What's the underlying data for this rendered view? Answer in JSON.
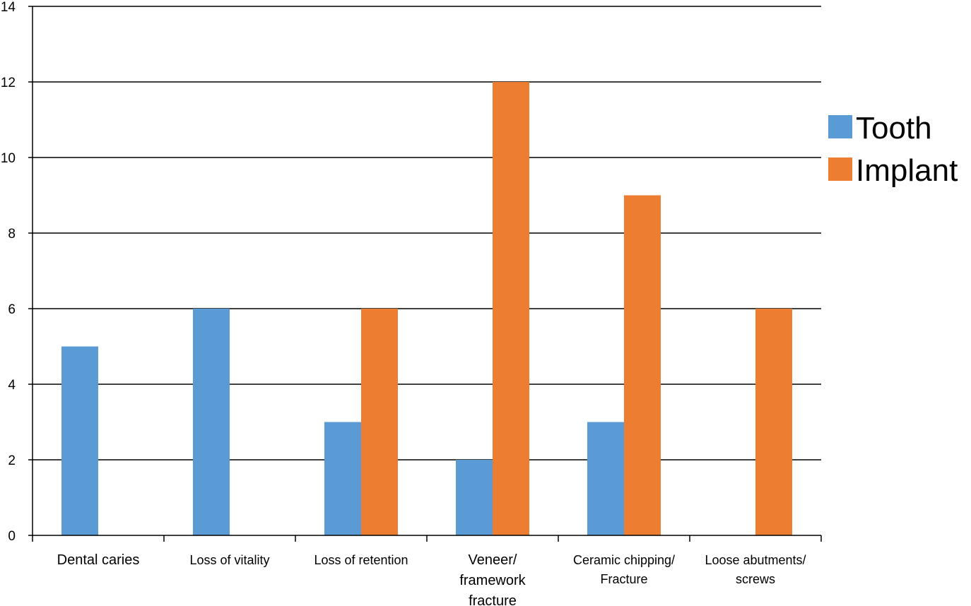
{
  "chart_data": {
    "type": "bar",
    "title": "",
    "xlabel": "",
    "ylabel": "",
    "ylim": [
      0,
      14
    ],
    "y_ticks": [
      0,
      2,
      4,
      6,
      8,
      10,
      12,
      14
    ],
    "grid": true,
    "legend_position": "right",
    "categories": [
      [
        "Dental caries"
      ],
      [
        "Loss of vitality"
      ],
      [
        "Loss of retention"
      ],
      [
        "Veneer/",
        "framework",
        "fracture"
      ],
      [
        "Ceramic chipping/",
        "Fracture"
      ],
      [
        "Loose abutments/",
        "screws"
      ]
    ],
    "series": [
      {
        "name": "Tooth",
        "color": "#5b9bd5",
        "values": [
          5,
          6,
          3,
          2,
          3,
          0
        ]
      },
      {
        "name": "Implant",
        "color": "#ed7d31",
        "values": [
          0,
          0,
          6,
          12,
          9,
          6
        ]
      }
    ]
  }
}
